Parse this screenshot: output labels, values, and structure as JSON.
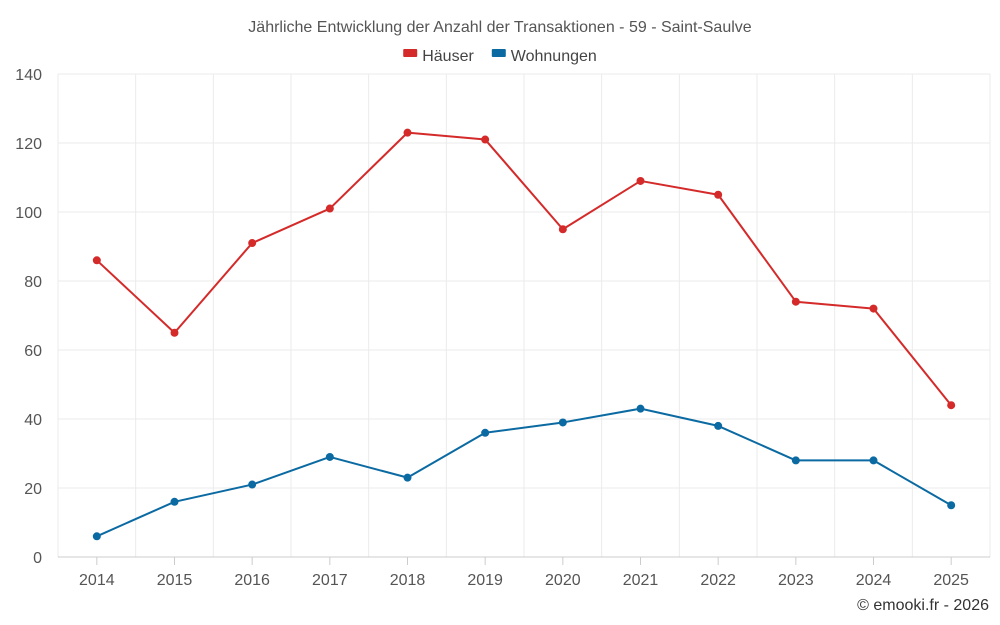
{
  "chart_data": {
    "type": "line",
    "title": "Jährliche Entwicklung der Anzahl der Transaktionen - 59 - Saint-Saulve",
    "categories": [
      "2014",
      "2015",
      "2016",
      "2017",
      "2018",
      "2019",
      "2020",
      "2021",
      "2022",
      "2023",
      "2024",
      "2025"
    ],
    "series": [
      {
        "name": "Häuser",
        "color": "#d42a2a",
        "values": [
          86,
          65,
          91,
          101,
          123,
          121,
          95,
          109,
          105,
          74,
          72,
          44
        ]
      },
      {
        "name": "Wohnungen",
        "color": "#0b6aa2",
        "values": [
          6,
          16,
          21,
          29,
          23,
          36,
          39,
          43,
          38,
          28,
          28,
          15
        ]
      }
    ],
    "ylim": [
      0,
      140
    ],
    "yticks": [
      0,
      20,
      40,
      60,
      80,
      100,
      120,
      140
    ],
    "xlabel": "",
    "ylabel": "",
    "grid": true,
    "legend": "top-center"
  },
  "credit": "© emooki.fr - 2026"
}
